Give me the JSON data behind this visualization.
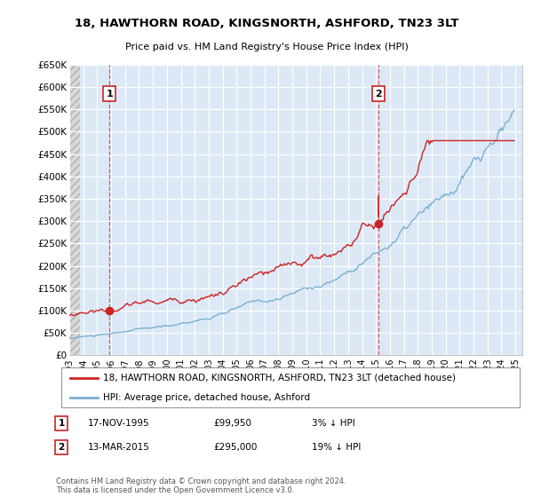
{
  "title": "18, HAWTHORN ROAD, KINGSNORTH, ASHFORD, TN23 3LT",
  "subtitle": "Price paid vs. HM Land Registry's House Price Index (HPI)",
  "ylim": [
    0,
    650000
  ],
  "yticks": [
    0,
    50000,
    100000,
    150000,
    200000,
    250000,
    300000,
    350000,
    400000,
    450000,
    500000,
    550000,
    600000,
    650000
  ],
  "ytick_labels": [
    "£0",
    "£50K",
    "£100K",
    "£150K",
    "£200K",
    "£250K",
    "£300K",
    "£350K",
    "£400K",
    "£450K",
    "£500K",
    "£550K",
    "£600K",
    "£650K"
  ],
  "background_color": "#ffffff",
  "plot_bg_color": "#dce8f5",
  "hatch_bg_color": "#e8e8e8",
  "hpi_color": "#7ab0d4",
  "price_color": "#cc2222",
  "grid_color": "#ffffff",
  "transaction1_x": 1995.88,
  "transaction1_y": 99950,
  "transaction2_x": 2015.2,
  "transaction2_y": 295000,
  "vline1_x": 1995.88,
  "vline2_x": 2015.2,
  "legend_line1": "18, HAWTHORN ROAD, KINGSNORTH, ASHFORD, TN23 3LT (detached house)",
  "legend_line2": "HPI: Average price, detached house, Ashford",
  "note1_num": "1",
  "note1_date": "17-NOV-1995",
  "note1_price": "£99,950",
  "note1_hpi": "3% ↓ HPI",
  "note2_num": "2",
  "note2_date": "13-MAR-2015",
  "note2_price": "£295,000",
  "note2_hpi": "19% ↓ HPI",
  "copyright": "Contains HM Land Registry data © Crown copyright and database right 2024.\nThis data is licensed under the Open Government Licence v3.0.",
  "xlim_start": 1993.0,
  "xlim_end": 2025.5,
  "hatch_end_x": 1993.75,
  "xtick_years": [
    1993,
    1994,
    1995,
    1996,
    1997,
    1998,
    1999,
    2000,
    2001,
    2002,
    2003,
    2004,
    2005,
    2006,
    2007,
    2008,
    2009,
    2010,
    2011,
    2012,
    2013,
    2014,
    2015,
    2016,
    2017,
    2018,
    2019,
    2020,
    2021,
    2022,
    2023,
    2024,
    2025
  ]
}
